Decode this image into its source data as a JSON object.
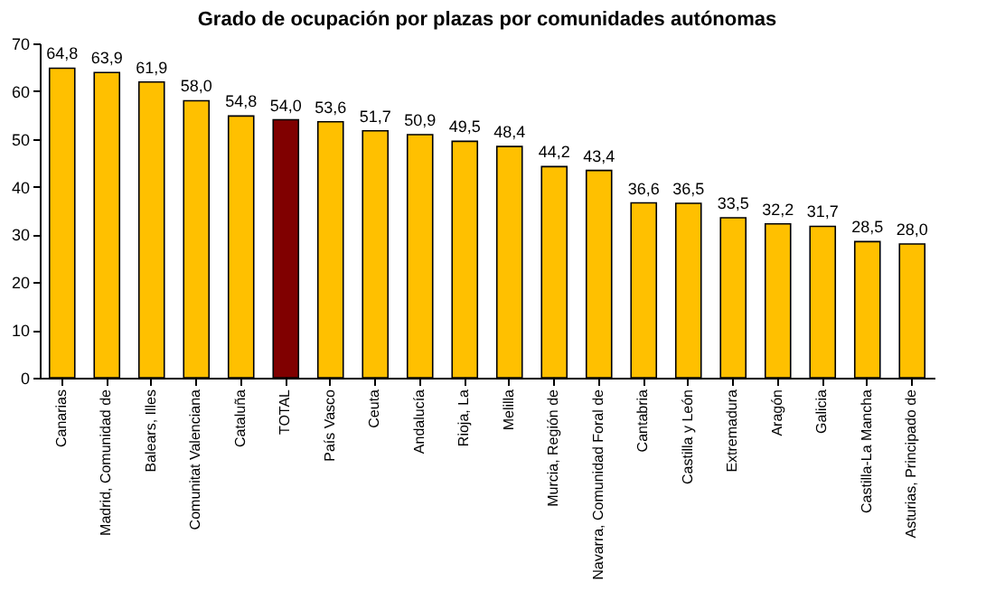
{
  "chart_data": {
    "type": "bar",
    "title": "Grado de ocupación por plazas por comunidades autónomas",
    "categories": [
      "Canarias",
      "Madrid, Comunidad de",
      "Balears, Illes",
      "Comunitat Valenciana",
      "Cataluña",
      "TOTAL",
      "País Vasco",
      "Ceuta",
      "Andalucía",
      "Rioja, La",
      "Melilla",
      "Murcia, Región de",
      "Navarra, Comunidad Foral de",
      "Cantabria",
      "Castilla y León",
      "Extremadura",
      "Aragón",
      "Galicia",
      "Castilla-La Mancha",
      "Asturias, Principado de"
    ],
    "values": [
      64.8,
      63.9,
      61.9,
      58.0,
      54.8,
      54.0,
      53.6,
      51.7,
      50.9,
      49.5,
      48.4,
      44.2,
      43.4,
      36.6,
      36.5,
      33.5,
      32.2,
      31.7,
      28.5,
      28.0
    ],
    "value_labels": [
      "64,8",
      "63,9",
      "61,9",
      "58,0",
      "54,8",
      "54,0",
      "53,6",
      "51,7",
      "50,9",
      "49,5",
      "48,4",
      "44,2",
      "43,4",
      "36,6",
      "36,5",
      "33,5",
      "32,2",
      "31,7",
      "28,5",
      "28,0"
    ],
    "colors": [
      "#ffc000",
      "#ffc000",
      "#ffc000",
      "#ffc000",
      "#ffc000",
      "#800000",
      "#ffc000",
      "#ffc000",
      "#ffc000",
      "#ffc000",
      "#ffc000",
      "#ffc000",
      "#ffc000",
      "#ffc000",
      "#ffc000",
      "#ffc000",
      "#ffc000",
      "#ffc000",
      "#ffc000",
      "#ffc000"
    ],
    "ylim": [
      0,
      70
    ],
    "yticks": [
      0,
      10,
      20,
      30,
      40,
      50,
      60,
      70
    ],
    "grid": false
  }
}
